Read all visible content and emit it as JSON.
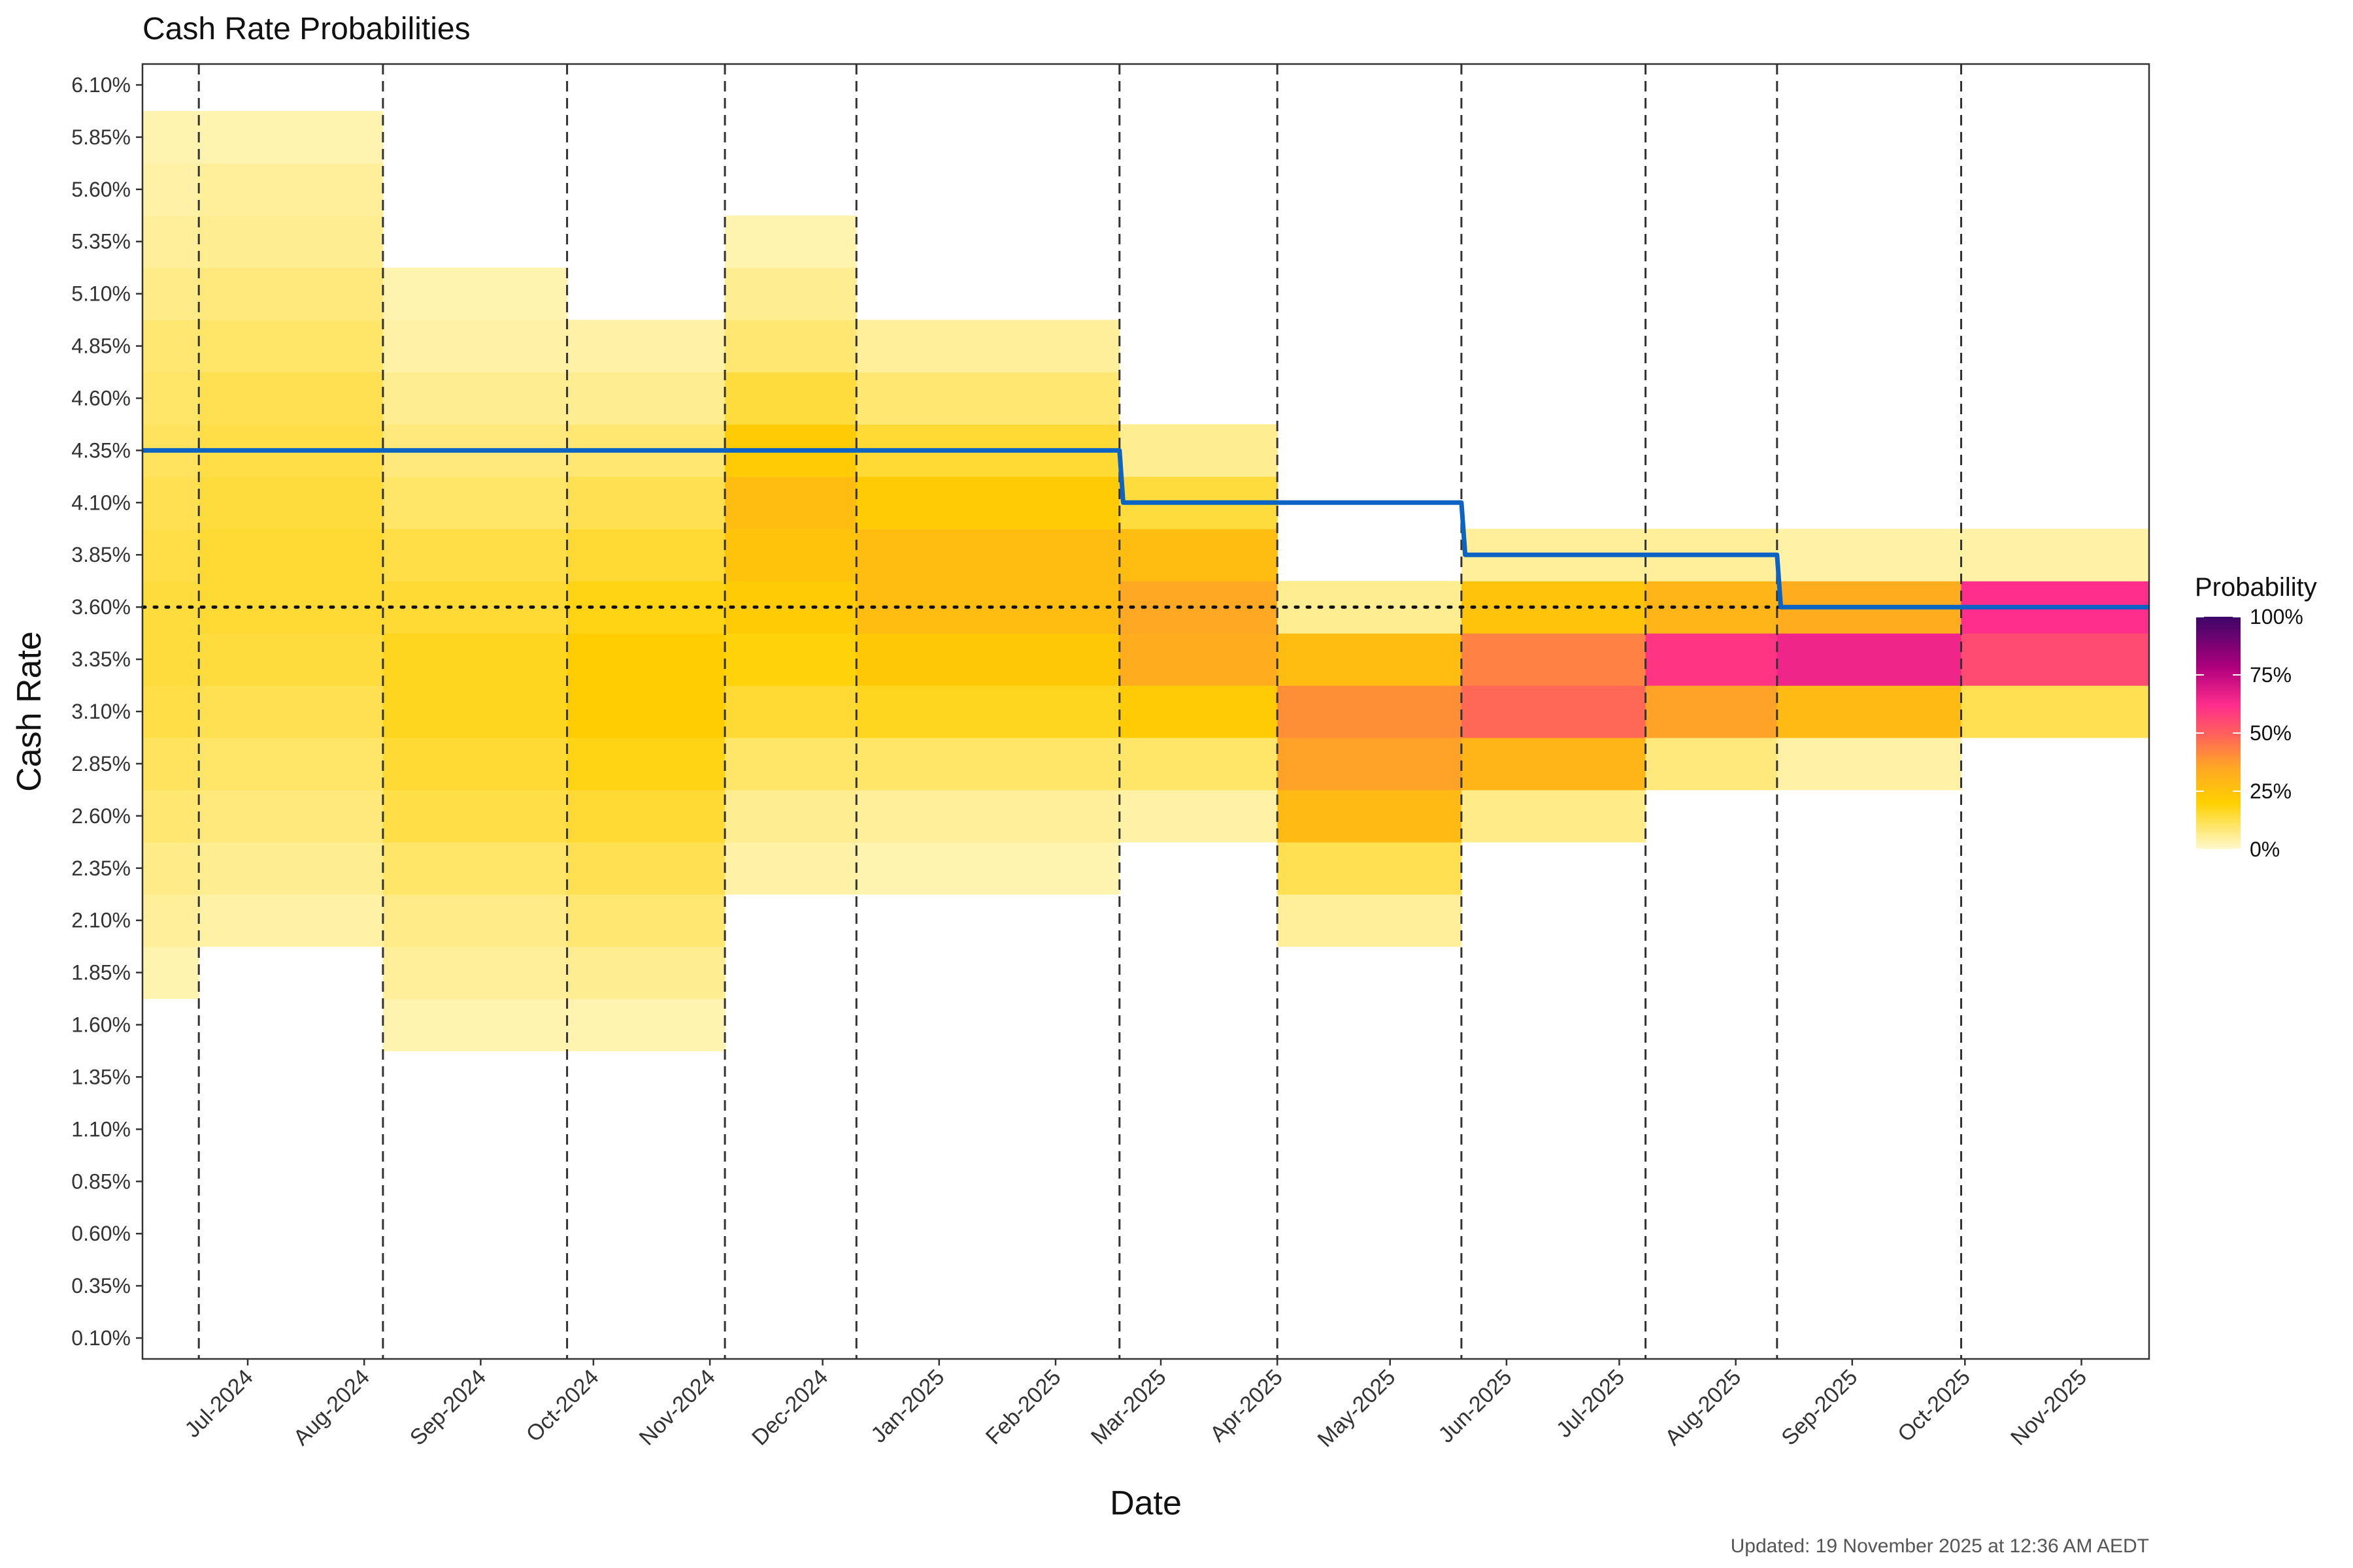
{
  "chart_data": {
    "type": "heatmap",
    "title": "Cash Rate Probabilities",
    "xlabel": "Date",
    "ylabel": "Cash Rate",
    "footnote": "Updated: 19 November 2025 at 12:36 AM AEDT",
    "x_range": [
      "2024-06-03",
      "2025-11-19"
    ],
    "x_ticks": [
      {
        "date": "2024-07-01",
        "label": "Jul-2024"
      },
      {
        "date": "2024-08-01",
        "label": "Aug-2024"
      },
      {
        "date": "2024-09-01",
        "label": "Sep-2024"
      },
      {
        "date": "2024-10-01",
        "label": "Oct-2024"
      },
      {
        "date": "2024-11-01",
        "label": "Nov-2024"
      },
      {
        "date": "2024-12-01",
        "label": "Dec-2024"
      },
      {
        "date": "2025-01-01",
        "label": "Jan-2025"
      },
      {
        "date": "2025-02-01",
        "label": "Feb-2025"
      },
      {
        "date": "2025-03-01",
        "label": "Mar-2025"
      },
      {
        "date": "2025-04-01",
        "label": "Apr-2025"
      },
      {
        "date": "2025-05-01",
        "label": "May-2025"
      },
      {
        "date": "2025-06-01",
        "label": "Jun-2025"
      },
      {
        "date": "2025-07-01",
        "label": "Jul-2025"
      },
      {
        "date": "2025-08-01",
        "label": "Aug-2025"
      },
      {
        "date": "2025-09-01",
        "label": "Sep-2025"
      },
      {
        "date": "2025-10-01",
        "label": "Oct-2025"
      },
      {
        "date": "2025-11-01",
        "label": "Nov-2025"
      }
    ],
    "y_values": [
      0.1,
      0.35,
      0.6,
      0.85,
      1.1,
      1.35,
      1.6,
      1.85,
      2.1,
      2.35,
      2.6,
      2.85,
      3.1,
      3.35,
      3.6,
      3.85,
      4.1,
      4.35,
      4.6,
      4.85,
      5.1,
      5.35,
      5.6,
      5.85,
      6.1
    ],
    "y_tick_labels": [
      "0.10%",
      "0.35%",
      "0.60%",
      "0.85%",
      "1.10%",
      "1.35%",
      "1.60%",
      "1.85%",
      "2.10%",
      "2.35%",
      "2.60%",
      "2.85%",
      "3.10%",
      "3.35%",
      "3.60%",
      "3.85%",
      "4.10%",
      "4.35%",
      "4.60%",
      "4.85%",
      "5.10%",
      "5.35%",
      "5.60%",
      "5.85%",
      "6.10%"
    ],
    "ylim": [
      0.0,
      6.2
    ],
    "meeting_dates": [
      "2024-06-18",
      "2024-08-06",
      "2024-09-24",
      "2024-11-05",
      "2024-12-10",
      "2025-02-18",
      "2025-04-01",
      "2025-05-20",
      "2025-07-08",
      "2025-08-12",
      "2025-09-30"
    ],
    "reference_rate": 3.6,
    "cash_rate_series": {
      "name": "Cash rate",
      "color": "#0b63c4",
      "points": [
        {
          "date": "2024-06-03",
          "rate": 4.35
        },
        {
          "date": "2025-02-18",
          "rate": 4.35
        },
        {
          "date": "2025-02-19",
          "rate": 4.1
        },
        {
          "date": "2025-05-20",
          "rate": 4.1
        },
        {
          "date": "2025-05-21",
          "rate": 3.85
        },
        {
          "date": "2025-08-12",
          "rate": 3.85
        },
        {
          "date": "2025-08-13",
          "rate": 3.6
        },
        {
          "date": "2025-11-19",
          "rate": 3.6
        }
      ]
    },
    "heatmap_periods": [
      {
        "start": "2024-06-03",
        "end": "2024-06-18",
        "probs": {
          "1.85": 3,
          "2.10": 5,
          "2.35": 7,
          "2.60": 9,
          "2.85": 11,
          "3.10": 13,
          "3.35": 14,
          "3.60": 14,
          "3.85": 13,
          "4.10": 12,
          "4.35": 11,
          "4.60": 10,
          "4.85": 9,
          "5.10": 7,
          "5.35": 5,
          "5.60": 4,
          "5.85": 3
        }
      },
      {
        "start": "2024-06-18",
        "end": "2024-08-06",
        "probs": {
          "2.10": 4,
          "2.35": 6,
          "2.60": 8,
          "2.85": 10,
          "3.10": 12,
          "3.35": 14,
          "3.60": 15,
          "3.85": 15,
          "4.10": 14,
          "4.35": 13,
          "4.60": 12,
          "4.85": 10,
          "5.10": 8,
          "5.35": 6,
          "5.60": 5,
          "5.85": 3
        }
      },
      {
        "start": "2024-08-06",
        "end": "2024-09-24",
        "probs": {
          "1.60": 3,
          "1.85": 5,
          "2.10": 7,
          "2.35": 10,
          "2.60": 13,
          "2.85": 15,
          "3.10": 17,
          "3.35": 17,
          "3.60": 15,
          "3.85": 13,
          "4.10": 10,
          "4.35": 8,
          "4.60": 6,
          "4.85": 4,
          "5.10": 3
        }
      },
      {
        "start": "2024-09-24",
        "end": "2024-11-05",
        "probs": {
          "1.60": 3,
          "1.85": 6,
          "2.10": 9,
          "2.35": 12,
          "2.60": 15,
          "2.85": 18,
          "3.10": 21,
          "3.35": 21,
          "3.60": 18,
          "3.85": 15,
          "4.10": 12,
          "4.35": 9,
          "4.60": 6,
          "4.85": 4
        }
      },
      {
        "start": "2024-11-05",
        "end": "2024-12-10",
        "probs": {
          "2.35": 4,
          "2.60": 6,
          "2.85": 10,
          "3.10": 15,
          "3.35": 19,
          "3.60": 22,
          "3.85": 25,
          "4.10": 27,
          "4.35": 22,
          "4.60": 14,
          "4.85": 9,
          "5.10": 6,
          "5.35": 3
        }
      },
      {
        "start": "2024-12-10",
        "end": "2025-02-18",
        "probs": {
          "2.35": 3,
          "2.60": 5,
          "2.85": 10,
          "3.10": 17,
          "3.35": 23,
          "3.60": 27,
          "3.85": 27,
          "4.10": 22,
          "4.35": 15,
          "4.60": 9,
          "4.85": 5
        }
      },
      {
        "start": "2025-02-18",
        "end": "2025-04-01",
        "probs": {
          "2.60": 4,
          "2.85": 10,
          "3.10": 22,
          "3.35": 33,
          "3.60": 35,
          "3.85": 27,
          "4.10": 14,
          "4.35": 6
        }
      },
      {
        "start": "2025-04-01",
        "end": "2025-05-20",
        "probs": {
          "2.10": 5,
          "2.35": 12,
          "2.60": 28,
          "2.85": 36,
          "3.10": 40,
          "3.35": 27,
          "3.60": 6
        }
      },
      {
        "start": "2025-05-20",
        "end": "2025-07-08",
        "probs": {
          "2.60": 7,
          "2.85": 30,
          "3.10": 48,
          "3.35": 43,
          "3.60": 25,
          "3.85": 5
        }
      },
      {
        "start": "2025-07-08",
        "end": "2025-08-12",
        "probs": {
          "2.85": 8,
          "3.10": 36,
          "3.35": 60,
          "3.60": 30,
          "3.85": 5
        }
      },
      {
        "start": "2025-08-12",
        "end": "2025-09-30",
        "probs": {
          "2.85": 4,
          "3.10": 28,
          "3.35": 65,
          "3.60": 33,
          "3.85": 4
        }
      },
      {
        "start": "2025-09-30",
        "end": "2025-11-19",
        "probs": {
          "3.10": 12,
          "3.35": 55,
          "3.60": 62,
          "3.85": 4
        }
      }
    ],
    "legend": {
      "title": "Probability",
      "position": "right",
      "labels": [
        "100%",
        "75%",
        "50%",
        "25%",
        "0%"
      ],
      "scale_stops": [
        {
          "p": 0,
          "color": "#fff9cf"
        },
        {
          "p": 0.2,
          "color": "#ffd000"
        },
        {
          "p": 0.35,
          "color": "#ffa824"
        },
        {
          "p": 0.5,
          "color": "#ff5e5e"
        },
        {
          "p": 0.62,
          "color": "#ff2d8c"
        },
        {
          "p": 0.78,
          "color": "#b0007d"
        },
        {
          "p": 1,
          "color": "#3c0668"
        }
      ]
    }
  }
}
